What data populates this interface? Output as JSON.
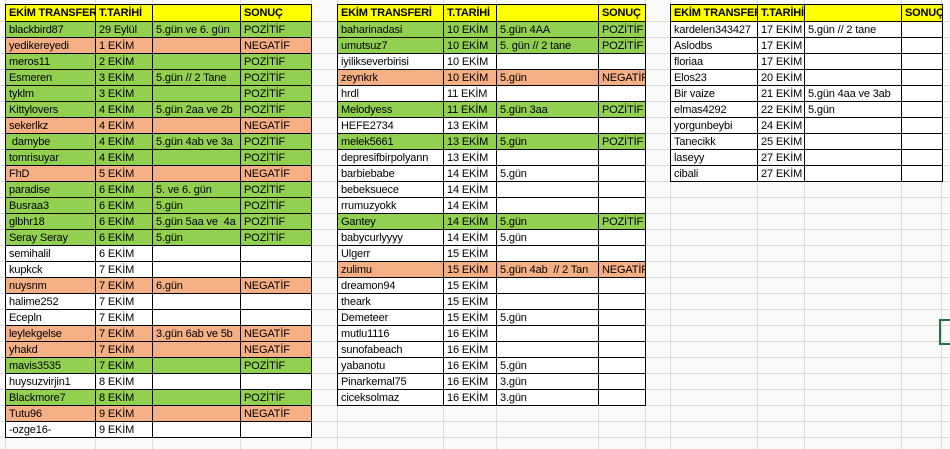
{
  "colors": {
    "header_bg": "#ffff00",
    "positive_bg": "#92d050",
    "negative_bg": "#f4b084",
    "selection_border": "#217346"
  },
  "tables": [
    {
      "header": {
        "name": "EKİM TRANSFERİ",
        "date": "T.TARİHİ",
        "notes": "",
        "result": "SONUÇ"
      },
      "rows": [
        {
          "name": "blackbird87",
          "date": "29 Eylül",
          "notes": "5.gün ve 6. gün",
          "result": "POZİTİF",
          "status": "positive"
        },
        {
          "name": "yedikereyedi",
          "date": "1 EKİM",
          "notes": "",
          "result": "NEGATİF",
          "status": "negative"
        },
        {
          "name": "meros11",
          "date": "2 EKİM",
          "notes": "",
          "result": "POZİTİF",
          "status": "positive"
        },
        {
          "name": "Esmeren",
          "date": "3 EKİM",
          "notes": "5.gün // 2 Tane",
          "result": "POZİTİF",
          "status": "positive"
        },
        {
          "name": "tyklm",
          "date": "3 EKİM",
          "notes": "",
          "result": "POZİTİF",
          "status": "positive"
        },
        {
          "name": "Kittylovers",
          "date": "4 EKİM",
          "notes": "5.gün 2aa ve 2b",
          "result": "POZİTİF",
          "status": "positive"
        },
        {
          "name": "sekerlkz",
          "date": "4 EKİM",
          "notes": "",
          "result": "NEGATİF",
          "status": "negative"
        },
        {
          "name": " damybe",
          "date": "4 EKİM",
          "notes": "5.gün 4ab ve 3a",
          "result": "POZİTİF",
          "status": "positive"
        },
        {
          "name": "tomrisuyar",
          "date": "4 EKİM",
          "notes": "",
          "result": "POZİTİF",
          "status": "positive"
        },
        {
          "name": "FhD",
          "date": "5 EKİM",
          "notes": "",
          "result": "NEGATİF",
          "status": "negative"
        },
        {
          "name": "paradise",
          "date": "6 EKİM",
          "notes": "5. ve 6. gün",
          "result": "POZİTİF",
          "status": "positive"
        },
        {
          "name": "Busraa3",
          "date": "6 EKİM",
          "notes": "5.gün",
          "result": "POZİTİF",
          "status": "positive"
        },
        {
          "name": "glbhr18",
          "date": "6 EKİM",
          "notes": "5.gün 5aa ve  4a",
          "result": "POZİTİF",
          "status": "positive"
        },
        {
          "name": "Seray Seray",
          "date": "6 EKİM",
          "notes": "5.gün",
          "result": "POZİTİF",
          "status": "positive"
        },
        {
          "name": "semihalil",
          "date": "6 EKİM",
          "notes": "",
          "result": "",
          "status": "none"
        },
        {
          "name": "kupkck",
          "date": "7 EKİM",
          "notes": "",
          "result": "",
          "status": "none"
        },
        {
          "name": "nuysnm",
          "date": "7 EKİM",
          "notes": "6.gün",
          "result": "NEGATİF",
          "status": "negative"
        },
        {
          "name": "halime252",
          "date": "7 EKİM",
          "notes": "",
          "result": "",
          "status": "none"
        },
        {
          "name": "Ecepln",
          "date": "7 EKİM",
          "notes": "",
          "result": "",
          "status": "none"
        },
        {
          "name": "leylekgelse",
          "date": "7 EKİM",
          "notes": "3.gün 6ab ve 5b",
          "result": "NEGATİF",
          "status": "negative"
        },
        {
          "name": "yhakd",
          "date": "7 EKİM",
          "notes": "",
          "result": "NEGATİF",
          "status": "negative"
        },
        {
          "name": "mavis3535",
          "date": "7 EKİM",
          "notes": "",
          "result": "POZİTİF",
          "status": "positive"
        },
        {
          "name": "huysuzvirjin1",
          "date": "8 EKİM",
          "notes": "",
          "result": "",
          "status": "none"
        },
        {
          "name": "Blackmore7",
          "date": "8 EKİM",
          "notes": "",
          "result": "POZİTİF",
          "status": "positive"
        },
        {
          "name": "Tutu96",
          "date": "9 EKİM",
          "notes": "",
          "result": "NEGATİF",
          "status": "negative"
        },
        {
          "name": "-ozge16-",
          "date": "9 EKİM",
          "notes": "",
          "result": "",
          "status": "none"
        }
      ]
    },
    {
      "header": {
        "name": "EKİM TRANSFERİ",
        "date": "T.TARİHİ",
        "notes": "",
        "result": "SONUÇ"
      },
      "rows": [
        {
          "name": "baharinadasi",
          "date": "10 EKİM",
          "notes": "5.gün 4AA",
          "result": "POZİTİF",
          "status": "positive"
        },
        {
          "name": "umutsuz7",
          "date": "10 EKİM",
          "notes": "5. gün // 2 tane",
          "result": "POZİTİF",
          "status": "positive"
        },
        {
          "name": "iyilikseverbirisi",
          "date": "10 EKİM",
          "notes": "",
          "result": "",
          "status": "none"
        },
        {
          "name": "zeynkrk",
          "date": "10 EKİM",
          "notes": "5.gün",
          "result": "NEGATİF",
          "status": "negative"
        },
        {
          "name": "hrdl",
          "date": "11 EKİM",
          "notes": "",
          "result": "",
          "status": "none"
        },
        {
          "name": "Melodyess",
          "date": "11 EKİM",
          "notes": "5.gün 3aa",
          "result": "POZİTİF",
          "status": "positive"
        },
        {
          "name": "HEFE2734",
          "date": "13 EKİM",
          "notes": "",
          "result": "",
          "status": "none"
        },
        {
          "name": "melek5661",
          "date": "13 EKİM",
          "notes": "5.gün",
          "result": "POZİTİF",
          "status": "positive"
        },
        {
          "name": "depresifbirpolyann",
          "date": "13 EKİM",
          "notes": "",
          "result": "",
          "status": "none"
        },
        {
          "name": "barbiebabe",
          "date": "14 EKİM",
          "notes": "5.gün",
          "result": "",
          "status": "none"
        },
        {
          "name": "bebeksuece",
          "date": "14 EKİM",
          "notes": "",
          "result": "",
          "status": "none"
        },
        {
          "name": "rrumuzyokk",
          "date": "14 EKİM",
          "notes": "",
          "result": "",
          "status": "none"
        },
        {
          "name": "Gantey",
          "date": "14 EKİM",
          "notes": "5.gün",
          "result": "POZİTİF",
          "status": "positive"
        },
        {
          "name": "babycurlyyyy",
          "date": "14 EKİM",
          "notes": "5.gün",
          "result": "",
          "status": "none"
        },
        {
          "name": "Ulgerr",
          "date": "15 EKİM",
          "notes": "",
          "result": "",
          "status": "none"
        },
        {
          "name": "zulimu",
          "date": "15 EKİM",
          "notes": "5.gün 4ab  // 2 Tan",
          "result": "NEGATİF",
          "status": "negative"
        },
        {
          "name": "dreamon94",
          "date": "15 EKİM",
          "notes": "",
          "result": "",
          "status": "none"
        },
        {
          "name": "theark",
          "date": "15 EKİM",
          "notes": "",
          "result": "",
          "status": "none"
        },
        {
          "name": "Demeteer",
          "date": "15 EKİM",
          "notes": "5.gün",
          "result": "",
          "status": "none"
        },
        {
          "name": "mutlu1116",
          "date": "16 EKİM",
          "notes": "",
          "result": "",
          "status": "none"
        },
        {
          "name": "sunofabeach",
          "date": "16 EKİM",
          "notes": "",
          "result": "",
          "status": "none"
        },
        {
          "name": "yabanotu",
          "date": "16 EKİM",
          "notes": "5.gün",
          "result": "",
          "status": "none"
        },
        {
          "name": "Pinarkemal75",
          "date": "16 EKİM",
          "notes": "3.gün",
          "result": "",
          "status": "none"
        },
        {
          "name": "ciceksolmaz",
          "date": "16 EKİM",
          "notes": "3.gün",
          "result": "",
          "status": "none"
        }
      ]
    },
    {
      "header": {
        "name": "EKİM TRANSFERİ",
        "date": "T.TARİHİ",
        "notes": "",
        "result": "SONUÇ"
      },
      "rows": [
        {
          "name": "kardelen343427",
          "date": "17 EKİM",
          "notes": "5.gün // 2 tane",
          "result": "",
          "status": "none"
        },
        {
          "name": "Aslodbs",
          "date": "17 EKİM",
          "notes": "",
          "result": "",
          "status": "none"
        },
        {
          "name": "floriaa",
          "date": "17 EKİM",
          "notes": "",
          "result": "",
          "status": "none"
        },
        {
          "name": "Elos23",
          "date": "20 EKİM",
          "notes": "",
          "result": "",
          "status": "none"
        },
        {
          "name": "Bir vaize",
          "date": "21 EKİM",
          "notes": "5.gün 4aa ve 3ab",
          "result": "",
          "status": "none"
        },
        {
          "name": "elmas4292",
          "date": "22 EKİM",
          "notes": "5.gün",
          "result": "",
          "status": "none"
        },
        {
          "name": "yorgunbeybi",
          "date": "24 EKİM",
          "notes": "",
          "result": "",
          "status": "none"
        },
        {
          "name": "Tanecikk",
          "date": "25 EKİM",
          "notes": "",
          "result": "",
          "status": "none"
        },
        {
          "name": "laseyy",
          "date": "27 EKİM",
          "notes": "",
          "result": "",
          "status": "none"
        },
        {
          "name": "cibali",
          "date": "27 EKİM",
          "notes": "",
          "result": "",
          "status": "none"
        }
      ]
    }
  ]
}
